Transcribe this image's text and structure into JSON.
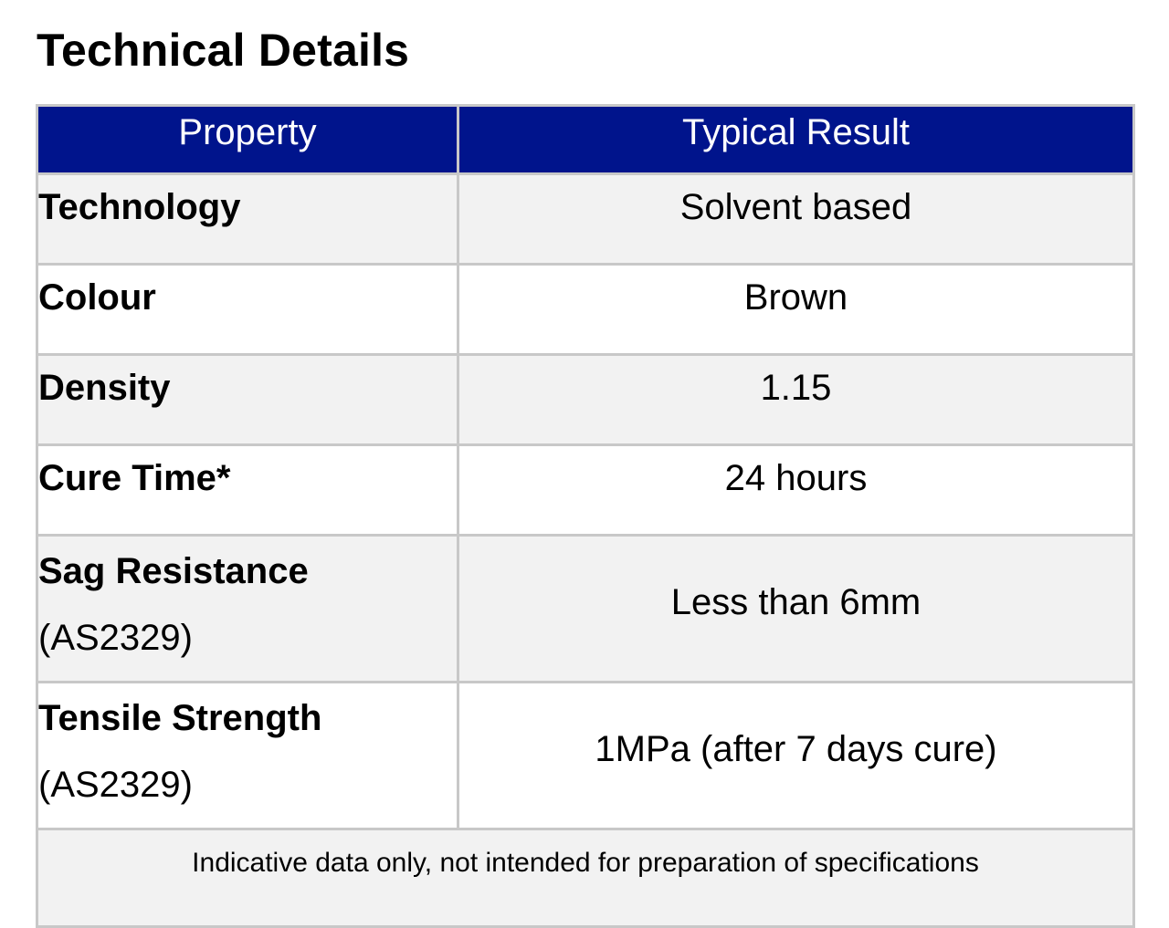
{
  "title": "Technical Details",
  "table": {
    "headers": {
      "property": "Property",
      "result": "Typical Result"
    },
    "rows": [
      {
        "property": "Technology",
        "standard": "",
        "value": "Solvent based"
      },
      {
        "property": "Colour",
        "standard": "",
        "value": "Brown"
      },
      {
        "property": "Density",
        "standard": "",
        "value": "1.15"
      },
      {
        "property": "Cure Time*",
        "standard": "",
        "value": "24 hours"
      },
      {
        "property": "Sag Resistance",
        "standard": "(AS2329)",
        "value": "Less than 6mm"
      },
      {
        "property": "Tensile Strength",
        "standard": "(AS2329)",
        "value": "1MPa (after 7 days cure)"
      }
    ],
    "footer": "Indicative data only, not intended for preparation of specifications"
  },
  "colors": {
    "header_bg": "#00148c",
    "header_text": "#ffffff",
    "row_shade": "#f2f2f2",
    "border": "#c8c8c8"
  }
}
